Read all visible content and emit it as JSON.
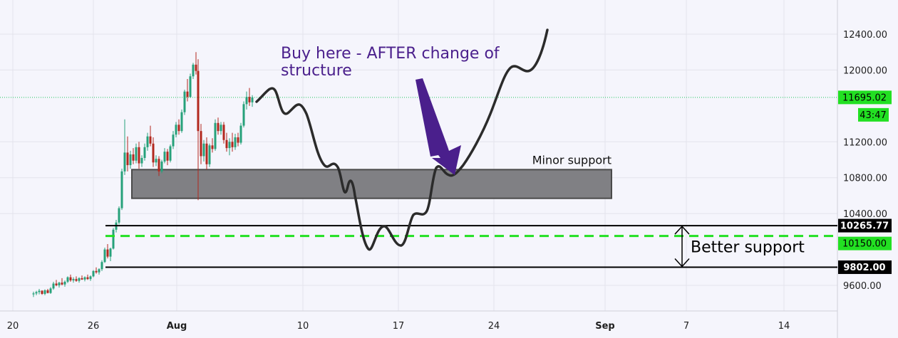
{
  "chart_data": {
    "type": "candlestick",
    "price_axis": {
      "ticks": [
        "12400.00",
        "12000.00",
        "11200.00",
        "10800.00",
        "10400.00",
        "9600.00"
      ],
      "range": [
        9350,
        12750
      ]
    },
    "time_axis": {
      "labels": [
        "20",
        "26",
        "Aug",
        "10",
        "17",
        "24",
        "Sep",
        "7",
        "14"
      ]
    },
    "levels": {
      "last_price": {
        "value": 11695.02,
        "label": "11695.02",
        "countdown": "43:47",
        "color": "#22c55e"
      },
      "upper_line": {
        "value": 10265.77,
        "label": "10265.77"
      },
      "mid_dashed": {
        "value": 10150.0,
        "label": "10150.00",
        "color": "#22e022"
      },
      "lower_line": {
        "value": 9802.0,
        "label": "9802.00"
      }
    },
    "zones": {
      "minor_support": {
        "low": 10570,
        "high": 10890,
        "label": "Minor support"
      }
    },
    "annotations": {
      "buy_text_line1": "Buy here - AFTER change of",
      "buy_text_line2": "structure",
      "buy_text_color": "#4a1f8c",
      "better_support": "Better support"
    },
    "colors": {
      "up_candle": "#26a17a",
      "down_candle": "#b2281e",
      "arrow": "#4a1f8c",
      "projection": "#2b2b2b",
      "zone_fill": "#808080"
    }
  }
}
